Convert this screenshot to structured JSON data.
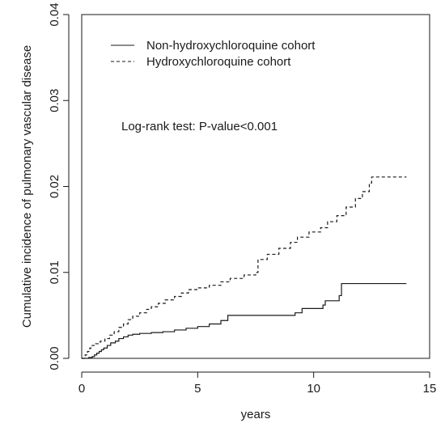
{
  "chart_data": {
    "type": "line",
    "title": "",
    "xlabel": "years",
    "ylabel": "Cumulative incidence of pulmonary vascular disease",
    "xlim": [
      0,
      15
    ],
    "ylim": [
      0,
      0.04
    ],
    "x_ticks": [
      0,
      5,
      10,
      15
    ],
    "x_tick_labels": [
      "0",
      "5",
      "10",
      "15"
    ],
    "y_ticks": [
      0,
      0.01,
      0.02,
      0.03,
      0.04
    ],
    "y_tick_labels": [
      "0.00",
      "0.01",
      "0.02",
      "0.03",
      "0.04"
    ],
    "grid": false,
    "legend_position": "top-left",
    "annotation": "Log-rank test: P-value<0.001",
    "series": [
      {
        "name": "Non-hydroxychloroquine cohort",
        "style": "solid",
        "color": "#1a1a1a",
        "points": [
          [
            0,
            0
          ],
          [
            0.25,
            0
          ],
          [
            0.3,
            0.0001
          ],
          [
            0.45,
            0.0002
          ],
          [
            0.55,
            0.0004
          ],
          [
            0.65,
            0.0006
          ],
          [
            0.75,
            0.0008
          ],
          [
            0.85,
            0.001
          ],
          [
            0.95,
            0.0012
          ],
          [
            1.1,
            0.0015
          ],
          [
            1.25,
            0.0018
          ],
          [
            1.45,
            0.002
          ],
          [
            1.6,
            0.0023
          ],
          [
            1.8,
            0.0025
          ],
          [
            2.0,
            0.0027
          ],
          [
            2.2,
            0.0028
          ],
          [
            2.5,
            0.0029
          ],
          [
            3.0,
            0.003
          ],
          [
            3.5,
            0.0031
          ],
          [
            4.0,
            0.0033
          ],
          [
            4.5,
            0.0035
          ],
          [
            5.0,
            0.0037
          ],
          [
            5.5,
            0.004
          ],
          [
            6.0,
            0.0044
          ],
          [
            6.3,
            0.005
          ],
          [
            8.0,
            0.005
          ],
          [
            9.2,
            0.0053
          ],
          [
            9.5,
            0.0058
          ],
          [
            10.4,
            0.0062
          ],
          [
            10.5,
            0.0067
          ],
          [
            11.1,
            0.0073
          ],
          [
            11.2,
            0.0087
          ],
          [
            14,
            0.0087
          ]
        ]
      },
      {
        "name": "Hydroxychloroquine cohort",
        "style": "dashed",
        "color": "#1a1a1a",
        "points": [
          [
            0,
            0
          ],
          [
            0.15,
            0.0004
          ],
          [
            0.25,
            0.0008
          ],
          [
            0.35,
            0.0012
          ],
          [
            0.45,
            0.0015
          ],
          [
            0.6,
            0.0017
          ],
          [
            0.8,
            0.002
          ],
          [
            1.0,
            0.0023
          ],
          [
            1.2,
            0.0027
          ],
          [
            1.4,
            0.0031
          ],
          [
            1.6,
            0.0036
          ],
          [
            1.8,
            0.004
          ],
          [
            2.0,
            0.0045
          ],
          [
            2.2,
            0.0049
          ],
          [
            2.5,
            0.0053
          ],
          [
            2.8,
            0.0057
          ],
          [
            3.0,
            0.006
          ],
          [
            3.3,
            0.0064
          ],
          [
            3.6,
            0.0068
          ],
          [
            4.0,
            0.0072
          ],
          [
            4.3,
            0.0076
          ],
          [
            4.6,
            0.008
          ],
          [
            5.0,
            0.0082
          ],
          [
            5.5,
            0.0085
          ],
          [
            6.0,
            0.0089
          ],
          [
            6.4,
            0.0093
          ],
          [
            7.0,
            0.0097
          ],
          [
            7.5,
            0.01
          ],
          [
            7.6,
            0.0115
          ],
          [
            8.0,
            0.0121
          ],
          [
            8.5,
            0.0128
          ],
          [
            9.0,
            0.0135
          ],
          [
            9.3,
            0.0141
          ],
          [
            9.8,
            0.0147
          ],
          [
            10.3,
            0.0152
          ],
          [
            10.6,
            0.0159
          ],
          [
            11.0,
            0.0166
          ],
          [
            11.4,
            0.0176
          ],
          [
            11.8,
            0.0186
          ],
          [
            12.1,
            0.0194
          ],
          [
            12.4,
            0.0204
          ],
          [
            12.5,
            0.0211
          ],
          [
            14,
            0.0211
          ]
        ]
      }
    ]
  }
}
